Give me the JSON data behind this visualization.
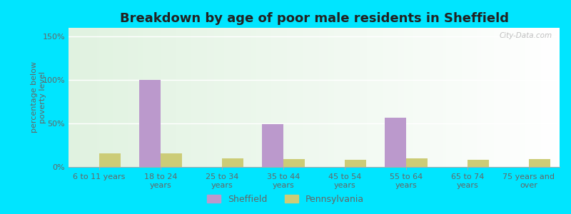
{
  "title": "Breakdown by age of poor male residents in Sheffield",
  "categories": [
    "6 to 11 years",
    "18 to 24\nyears",
    "25 to 34\nyears",
    "35 to 44\nyears",
    "45 to 54\nyears",
    "55 to 64\nyears",
    "65 to 74\nyears",
    "75 years and\nover"
  ],
  "sheffield_values": [
    0,
    100,
    0,
    49,
    0,
    57,
    0,
    0
  ],
  "pennsylvania_values": [
    16,
    16,
    10,
    9,
    8,
    10,
    8,
    9
  ],
  "sheffield_color": "#bb99cc",
  "pennsylvania_color": "#cccc77",
  "ylabel": "percentage below\npoverty level",
  "ylim": [
    0,
    160
  ],
  "yticks": [
    0,
    50,
    100,
    150
  ],
  "ytick_labels": [
    "0%",
    "50%",
    "100%",
    "150%"
  ],
  "bar_width": 0.35,
  "outer_bg": "#00e5ff",
  "title_fontsize": 13,
  "axis_fontsize": 8,
  "watermark": "City-Data.com",
  "text_color": "#666666",
  "grid_color": "#ccddbb"
}
